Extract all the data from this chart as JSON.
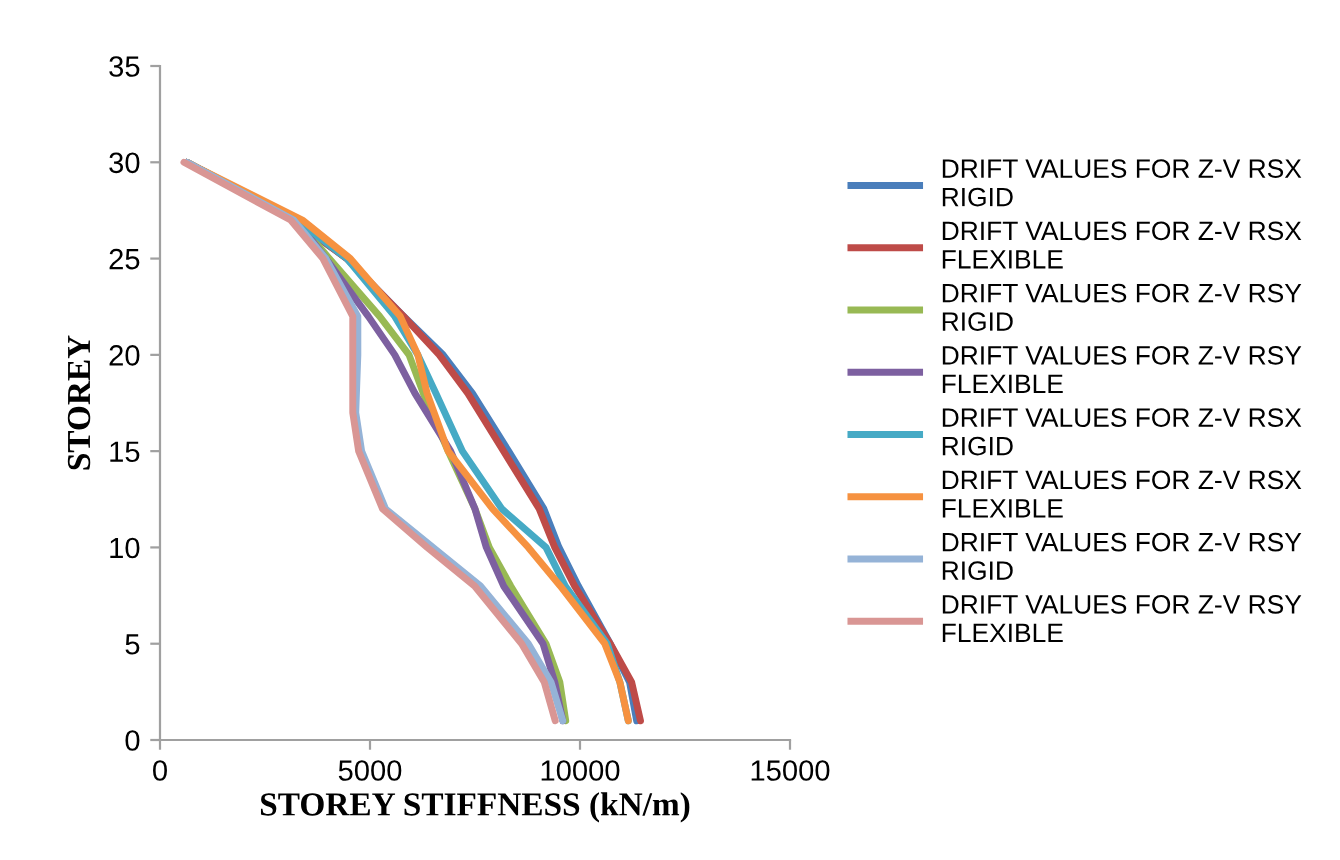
{
  "chart_data": {
    "type": "line",
    "xlabel": "STOREY STIFFNESS (kN/m)",
    "ylabel": "STOREY",
    "xlim": [
      0,
      15000
    ],
    "xticks": [
      0,
      5000,
      10000,
      15000
    ],
    "ylim": [
      0,
      35
    ],
    "yticks": [
      0,
      5,
      10,
      15,
      20,
      25,
      30,
      35
    ],
    "grid": false,
    "legend": "right",
    "marker": "none",
    "line_style": "solid",
    "series": [
      {
        "name": "DRIFT VALUES FOR Z-V RSX RIGID",
        "color": "#4a7ebb",
        "x": [
          11350,
          11180,
          10720,
          9960,
          9500,
          9140,
          8300,
          7440,
          6740,
          5800,
          4450,
          3180,
          640
        ],
        "values": [
          1,
          3,
          5,
          8,
          10,
          12,
          15,
          18,
          20,
          22,
          25,
          27,
          30
        ]
      },
      {
        "name": "DRIFT VALUES FOR Z-V RSX FLEXIBLE",
        "color": "#be4b48",
        "x": [
          11440,
          11230,
          10720,
          9870,
          9400,
          9030,
          8180,
          7330,
          6650,
          5800,
          4450,
          3180,
          640
        ],
        "values": [
          1,
          3,
          5,
          8,
          10,
          12,
          15,
          18,
          20,
          22,
          25,
          27,
          30
        ]
      },
      {
        "name": "DRIFT VALUES FOR Z-V RSY RIGID",
        "color": "#98b954",
        "x": [
          9660,
          9520,
          9190,
          8350,
          7840,
          7500,
          6860,
          6270,
          5930,
          5230,
          4030,
          3250,
          640
        ],
        "values": [
          1,
          3,
          5,
          8,
          10,
          12,
          15,
          18,
          20,
          22,
          25,
          27,
          30
        ]
      },
      {
        "name": "DRIFT VALUES FOR Z-V RSY FLEXIBLE",
        "color": "#7d60a0",
        "x": [
          9590,
          9400,
          9120,
          8180,
          7770,
          7500,
          6920,
          6070,
          5590,
          4960,
          3950,
          3250,
          640
        ],
        "values": [
          1,
          3,
          5,
          8,
          10,
          12,
          15,
          18,
          20,
          22,
          25,
          27,
          30
        ]
      },
      {
        "name": "DRIFT VALUES FOR Z-V RSX RIGID",
        "color": "#46aac5",
        "x": [
          11150,
          10950,
          10650,
          9650,
          9190,
          8140,
          7200,
          6570,
          6140,
          5590,
          4450,
          3250,
          640
        ],
        "values": [
          1,
          3,
          5,
          8,
          10,
          12,
          15,
          18,
          20,
          22,
          25,
          27,
          30
        ]
      },
      {
        "name": "DRIFT VALUES FOR Z-V RSX FLEXIBLE",
        "color": "#f69240",
        "x": [
          11150,
          10950,
          10590,
          9530,
          8770,
          7920,
          6860,
          6360,
          6140,
          5720,
          4530,
          3390,
          640
        ],
        "values": [
          1,
          3,
          5,
          8,
          10,
          12,
          15,
          18,
          20,
          22,
          25,
          27,
          30
        ]
      },
      {
        "name": "DRIFT VALUES FOR Z-V RSY RIGID",
        "color": "#95b3d7",
        "x": [
          9590,
          9310,
          8770,
          7630,
          6500,
          5370,
          4800,
          4660,
          4710,
          4710,
          3950,
          3180,
          640
        ],
        "values": [
          1,
          3,
          5,
          8,
          10,
          12,
          15,
          17,
          20,
          22,
          25,
          27,
          30
        ]
      },
      {
        "name": "DRIFT VALUES FOR Z-V RSY FLEXIBLE",
        "color": "#d99694",
        "x": [
          9410,
          9150,
          8610,
          7490,
          6360,
          5300,
          4730,
          4590,
          4590,
          4590,
          3880,
          3110,
          570
        ],
        "values": [
          1,
          3,
          5,
          8,
          10,
          12,
          15,
          17,
          20,
          22,
          25,
          27,
          30
        ]
      }
    ]
  }
}
